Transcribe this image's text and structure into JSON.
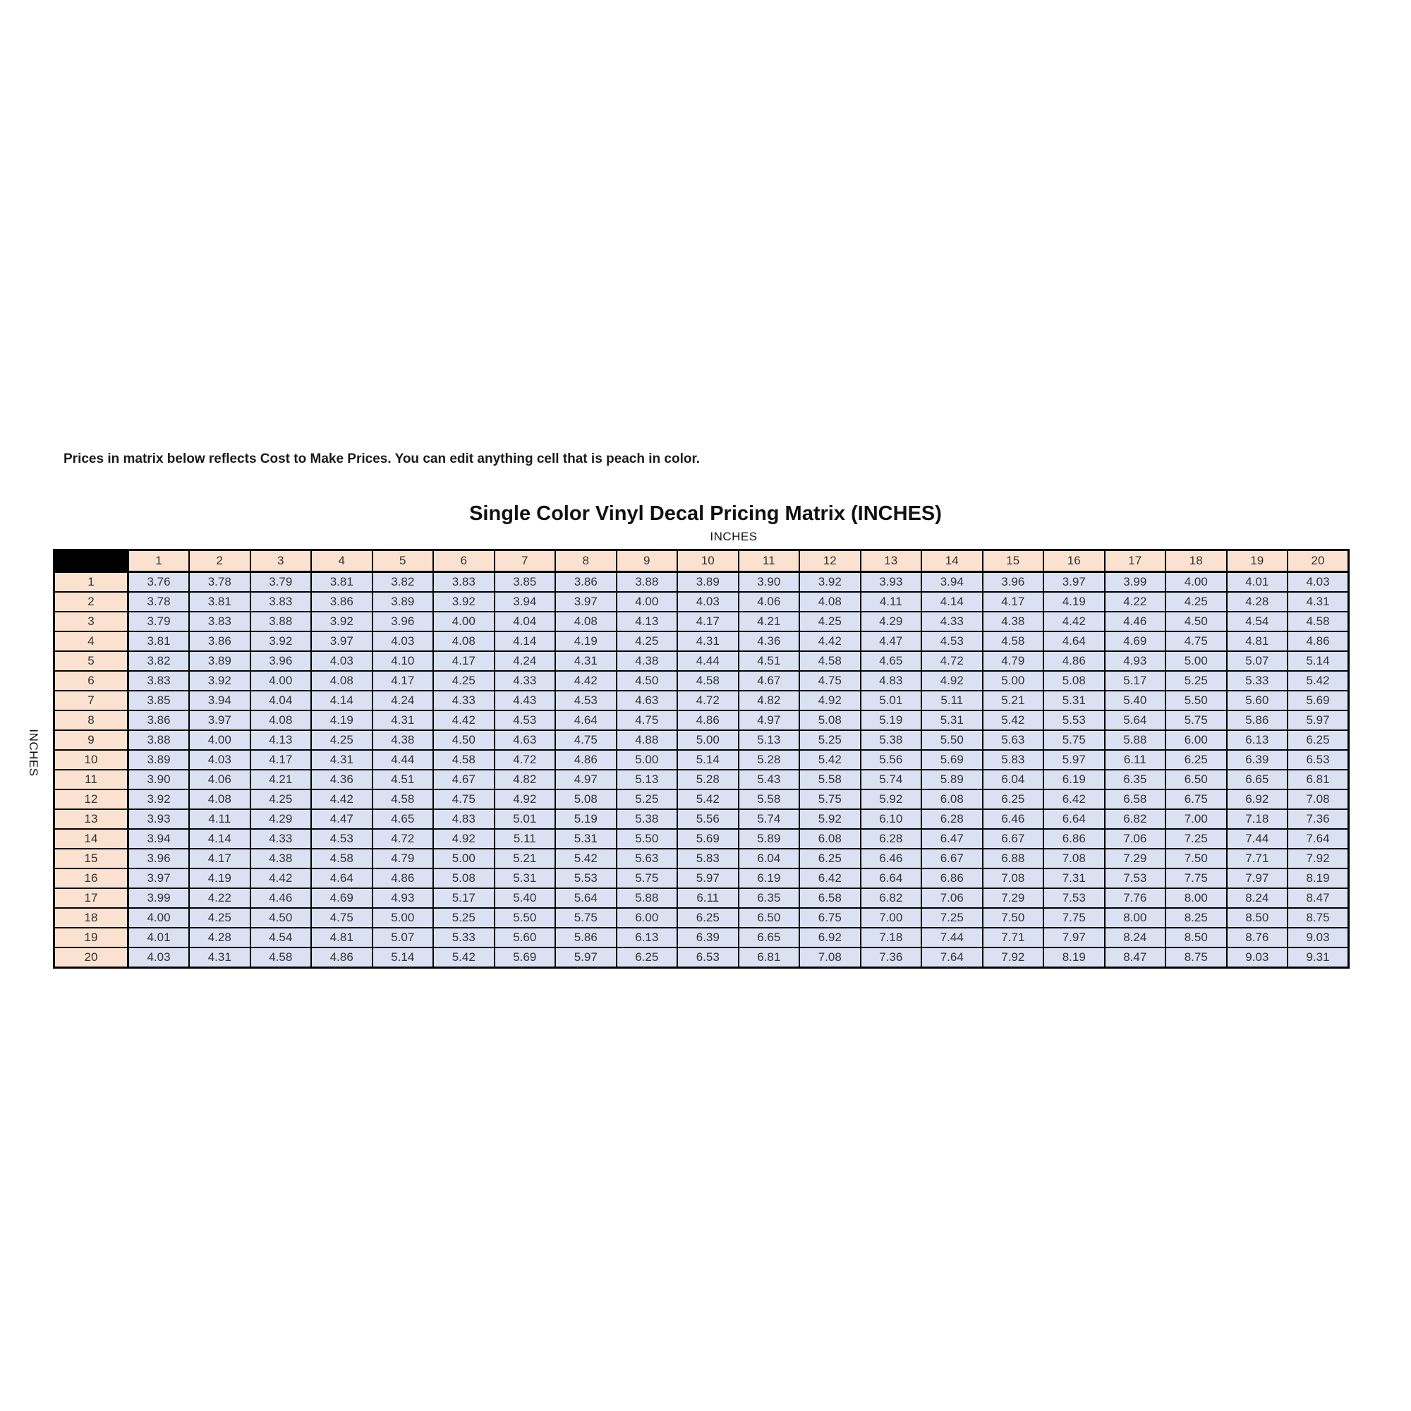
{
  "note": "Prices in matrix below reflects Cost to Make Prices. You can edit anything cell that is peach in color.",
  "title": "Single Color Vinyl Decal Pricing Matrix (INCHES)",
  "top_axis_label": "INCHES",
  "left_axis_label": "INCHES",
  "colors": {
    "header_fill": "#fbe2d0",
    "data_fill": "#d9e1f2",
    "corner_fill": "#000000",
    "border": "#000000",
    "text": "#333333"
  },
  "table": {
    "col_headers": [
      "1",
      "2",
      "3",
      "4",
      "5",
      "6",
      "7",
      "8",
      "9",
      "10",
      "11",
      "12",
      "13",
      "14",
      "15",
      "16",
      "17",
      "18",
      "19",
      "20"
    ],
    "row_headers": [
      "1",
      "2",
      "3",
      "4",
      "5",
      "6",
      "7",
      "8",
      "9",
      "10",
      "11",
      "12",
      "13",
      "14",
      "15",
      "16",
      "17",
      "18",
      "19",
      "20"
    ],
    "matrix": [
      [
        "3.76",
        "3.78",
        "3.79",
        "3.81",
        "3.82",
        "3.83",
        "3.85",
        "3.86",
        "3.88",
        "3.89",
        "3.90",
        "3.92",
        "3.93",
        "3.94",
        "3.96",
        "3.97",
        "3.99",
        "4.00",
        "4.01",
        "4.03"
      ],
      [
        "3.78",
        "3.81",
        "3.83",
        "3.86",
        "3.89",
        "3.92",
        "3.94",
        "3.97",
        "4.00",
        "4.03",
        "4.06",
        "4.08",
        "4.11",
        "4.14",
        "4.17",
        "4.19",
        "4.22",
        "4.25",
        "4.28",
        "4.31"
      ],
      [
        "3.79",
        "3.83",
        "3.88",
        "3.92",
        "3.96",
        "4.00",
        "4.04",
        "4.08",
        "4.13",
        "4.17",
        "4.21",
        "4.25",
        "4.29",
        "4.33",
        "4.38",
        "4.42",
        "4.46",
        "4.50",
        "4.54",
        "4.58"
      ],
      [
        "3.81",
        "3.86",
        "3.92",
        "3.97",
        "4.03",
        "4.08",
        "4.14",
        "4.19",
        "4.25",
        "4.31",
        "4.36",
        "4.42",
        "4.47",
        "4.53",
        "4.58",
        "4.64",
        "4.69",
        "4.75",
        "4.81",
        "4.86"
      ],
      [
        "3.82",
        "3.89",
        "3.96",
        "4.03",
        "4.10",
        "4.17",
        "4.24",
        "4.31",
        "4.38",
        "4.44",
        "4.51",
        "4.58",
        "4.65",
        "4.72",
        "4.79",
        "4.86",
        "4.93",
        "5.00",
        "5.07",
        "5.14"
      ],
      [
        "3.83",
        "3.92",
        "4.00",
        "4.08",
        "4.17",
        "4.25",
        "4.33",
        "4.42",
        "4.50",
        "4.58",
        "4.67",
        "4.75",
        "4.83",
        "4.92",
        "5.00",
        "5.08",
        "5.17",
        "5.25",
        "5.33",
        "5.42"
      ],
      [
        "3.85",
        "3.94",
        "4.04",
        "4.14",
        "4.24",
        "4.33",
        "4.43",
        "4.53",
        "4.63",
        "4.72",
        "4.82",
        "4.92",
        "5.01",
        "5.11",
        "5.21",
        "5.31",
        "5.40",
        "5.50",
        "5.60",
        "5.69"
      ],
      [
        "3.86",
        "3.97",
        "4.08",
        "4.19",
        "4.31",
        "4.42",
        "4.53",
        "4.64",
        "4.75",
        "4.86",
        "4.97",
        "5.08",
        "5.19",
        "5.31",
        "5.42",
        "5.53",
        "5.64",
        "5.75",
        "5.86",
        "5.97"
      ],
      [
        "3.88",
        "4.00",
        "4.13",
        "4.25",
        "4.38",
        "4.50",
        "4.63",
        "4.75",
        "4.88",
        "5.00",
        "5.13",
        "5.25",
        "5.38",
        "5.50",
        "5.63",
        "5.75",
        "5.88",
        "6.00",
        "6.13",
        "6.25"
      ],
      [
        "3.89",
        "4.03",
        "4.17",
        "4.31",
        "4.44",
        "4.58",
        "4.72",
        "4.86",
        "5.00",
        "5.14",
        "5.28",
        "5.42",
        "5.56",
        "5.69",
        "5.83",
        "5.97",
        "6.11",
        "6.25",
        "6.39",
        "6.53"
      ],
      [
        "3.90",
        "4.06",
        "4.21",
        "4.36",
        "4.51",
        "4.67",
        "4.82",
        "4.97",
        "5.13",
        "5.28",
        "5.43",
        "5.58",
        "5.74",
        "5.89",
        "6.04",
        "6.19",
        "6.35",
        "6.50",
        "6.65",
        "6.81"
      ],
      [
        "3.92",
        "4.08",
        "4.25",
        "4.42",
        "4.58",
        "4.75",
        "4.92",
        "5.08",
        "5.25",
        "5.42",
        "5.58",
        "5.75",
        "5.92",
        "6.08",
        "6.25",
        "6.42",
        "6.58",
        "6.75",
        "6.92",
        "7.08"
      ],
      [
        "3.93",
        "4.11",
        "4.29",
        "4.47",
        "4.65",
        "4.83",
        "5.01",
        "5.19",
        "5.38",
        "5.56",
        "5.74",
        "5.92",
        "6.10",
        "6.28",
        "6.46",
        "6.64",
        "6.82",
        "7.00",
        "7.18",
        "7.36"
      ],
      [
        "3.94",
        "4.14",
        "4.33",
        "4.53",
        "4.72",
        "4.92",
        "5.11",
        "5.31",
        "5.50",
        "5.69",
        "5.89",
        "6.08",
        "6.28",
        "6.47",
        "6.67",
        "6.86",
        "7.06",
        "7.25",
        "7.44",
        "7.64"
      ],
      [
        "3.96",
        "4.17",
        "4.38",
        "4.58",
        "4.79",
        "5.00",
        "5.21",
        "5.42",
        "5.63",
        "5.83",
        "6.04",
        "6.25",
        "6.46",
        "6.67",
        "6.88",
        "7.08",
        "7.29",
        "7.50",
        "7.71",
        "7.92"
      ],
      [
        "3.97",
        "4.19",
        "4.42",
        "4.64",
        "4.86",
        "5.08",
        "5.31",
        "5.53",
        "5.75",
        "5.97",
        "6.19",
        "6.42",
        "6.64",
        "6.86",
        "7.08",
        "7.31",
        "7.53",
        "7.75",
        "7.97",
        "8.19"
      ],
      [
        "3.99",
        "4.22",
        "4.46",
        "4.69",
        "4.93",
        "5.17",
        "5.40",
        "5.64",
        "5.88",
        "6.11",
        "6.35",
        "6.58",
        "6.82",
        "7.06",
        "7.29",
        "7.53",
        "7.76",
        "8.00",
        "8.24",
        "8.47"
      ],
      [
        "4.00",
        "4.25",
        "4.50",
        "4.75",
        "5.00",
        "5.25",
        "5.50",
        "5.75",
        "6.00",
        "6.25",
        "6.50",
        "6.75",
        "7.00",
        "7.25",
        "7.50",
        "7.75",
        "8.00",
        "8.25",
        "8.50",
        "8.75"
      ],
      [
        "4.01",
        "4.28",
        "4.54",
        "4.81",
        "5.07",
        "5.33",
        "5.60",
        "5.86",
        "6.13",
        "6.39",
        "6.65",
        "6.92",
        "7.18",
        "7.44",
        "7.71",
        "7.97",
        "8.24",
        "8.50",
        "8.76",
        "9.03"
      ],
      [
        "4.03",
        "4.31",
        "4.58",
        "4.86",
        "5.14",
        "5.42",
        "5.69",
        "5.97",
        "6.25",
        "6.53",
        "6.81",
        "7.08",
        "7.36",
        "7.64",
        "7.92",
        "8.19",
        "8.47",
        "8.75",
        "9.03",
        "9.31"
      ]
    ]
  }
}
